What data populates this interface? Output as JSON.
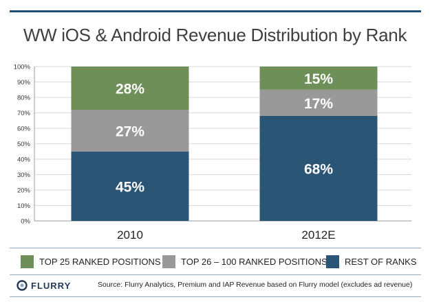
{
  "chart_data": {
    "type": "bar",
    "stacked": true,
    "title": "WW iOS & Android Revenue Distribution by Rank",
    "categories": [
      "2010",
      "2012E"
    ],
    "series": [
      {
        "name": "REST OF RANKS",
        "values": [
          45,
          68
        ],
        "labels": [
          "45%",
          "68%"
        ],
        "color": "#2b5575"
      },
      {
        "name": "TOP 26 – 100 RANKED POSITIONS",
        "values": [
          27,
          17
        ],
        "labels": [
          "27%",
          "17%"
        ],
        "color": "#999999"
      },
      {
        "name": "TOP 25 RANKED POSITIONS",
        "values": [
          28,
          15
        ],
        "labels": [
          "28%",
          "15%"
        ],
        "color": "#6e8f58"
      }
    ],
    "yticks": [
      "0%",
      "10%",
      "20%",
      "30%",
      "40%",
      "50%",
      "60%",
      "70%",
      "80%",
      "90%",
      "100%"
    ],
    "ylim": [
      0,
      100
    ],
    "grid": true,
    "legend_position": "bottom"
  },
  "legend": [
    {
      "label": "TOP 25 RANKED POSITIONS",
      "color": "#6e8f58"
    },
    {
      "label": "TOP 26 – 100 RANKED POSITIONS",
      "color": "#999999"
    },
    {
      "label": "REST OF RANKS",
      "color": "#2b5575"
    }
  ],
  "footer": {
    "logo_text": "FLURRY",
    "source": "Source: Flurry Analytics, Premium and IAP Revenue based on Flurry model (excludes ad revenue)"
  }
}
